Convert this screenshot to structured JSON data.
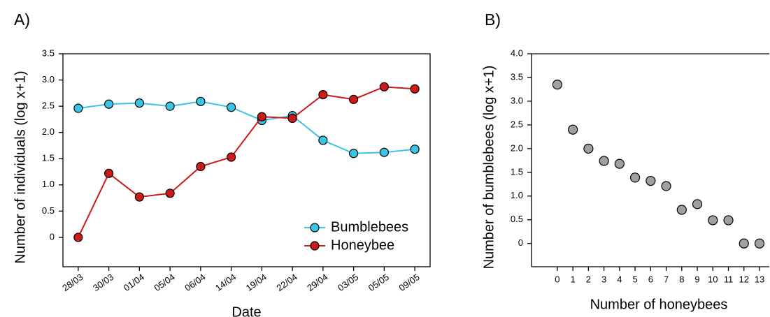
{
  "chart_data": [
    {
      "type": "line",
      "label": "A)",
      "xlabel": "Date",
      "ylabel": "Number of individuals (log x+1)",
      "categories": [
        "28/03",
        "30/03",
        "01/04",
        "05/04",
        "06/04",
        "14/04",
        "19/04",
        "22/04",
        "29/04",
        "03/05",
        "05/05",
        "09/05"
      ],
      "series": [
        {
          "name": "Bumblebees",
          "color": "#3cc4e4",
          "values": [
            2.46,
            2.54,
            2.56,
            2.5,
            2.59,
            2.48,
            2.23,
            2.32,
            1.85,
            1.6,
            1.62,
            1.68
          ]
        },
        {
          "name": "Honeybee",
          "color": "#cc1a1a",
          "values": [
            0,
            1.22,
            0.77,
            0.84,
            1.35,
            1.53,
            2.3,
            2.27,
            2.72,
            2.63,
            2.87,
            2.83
          ]
        }
      ],
      "ylim": [
        -0.56,
        3.5
      ],
      "yticks": [
        0,
        0.5,
        {
          "value": 1,
          "label": "1.0"
        },
        1.5,
        {
          "value": 2,
          "label": "2.0"
        },
        2.5,
        {
          "value": 3,
          "label": "3.0"
        },
        3.5
      ],
      "legend": "lower right"
    },
    {
      "type": "scatter",
      "label": "B)",
      "xlabel": "Number of honeybees",
      "ylabel": "Number of bumblebees (log x+1)",
      "color": "#a0a0a0",
      "x": [
        0,
        1,
        2,
        3,
        4,
        5,
        6,
        7,
        8,
        9,
        10,
        11,
        12,
        13
      ],
      "values": [
        3.35,
        2.4,
        2.0,
        1.74,
        1.68,
        1.39,
        1.32,
        1.21,
        0.71,
        0.83,
        0.49,
        0.49,
        0,
        0
      ],
      "xlim": [
        -1.66,
        13.63
      ],
      "ylim": [
        -0.49,
        4.0
      ],
      "xticks": [
        0,
        1,
        2,
        3,
        4,
        5,
        6,
        7,
        8,
        9,
        10,
        11,
        12,
        13
      ],
      "yticks": [
        0,
        0.5,
        {
          "value": 1,
          "label": "1.0"
        },
        1.5,
        {
          "value": 2,
          "label": "2.0"
        },
        2.5,
        {
          "value": 3,
          "label": "3.0"
        },
        3.5,
        {
          "value": 4,
          "label": "4.0"
        }
      ]
    }
  ]
}
